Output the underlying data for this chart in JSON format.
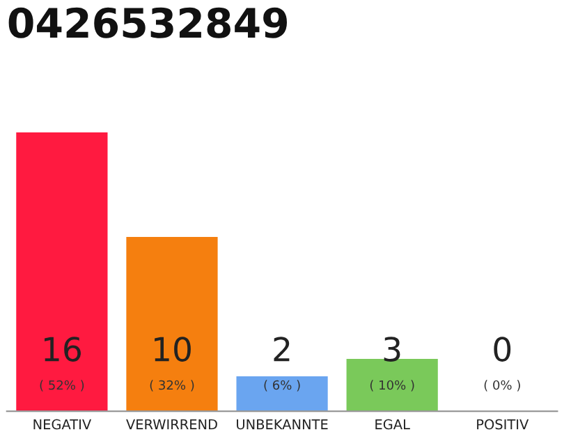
{
  "chart_data": {
    "type": "bar",
    "title": "0426532849",
    "categories": [
      "NEGATIV",
      "VERWIRREND",
      "UNBEKANNTE",
      "EGAL",
      "POSITIV"
    ],
    "values": [
      16,
      10,
      2,
      3,
      0
    ],
    "colors": [
      "#ff1a40",
      "#f57f0f",
      "#6aa5f0",
      "#7ac95a",
      "#c8c8c8"
    ],
    "ylim": [
      0,
      16
    ],
    "tick_labels": "x",
    "grid": false,
    "data_labels": true,
    "annotations": [
      "( 52% )",
      "( 32% )",
      "( 6% )",
      "( 10% )",
      "( 0% )"
    ]
  }
}
